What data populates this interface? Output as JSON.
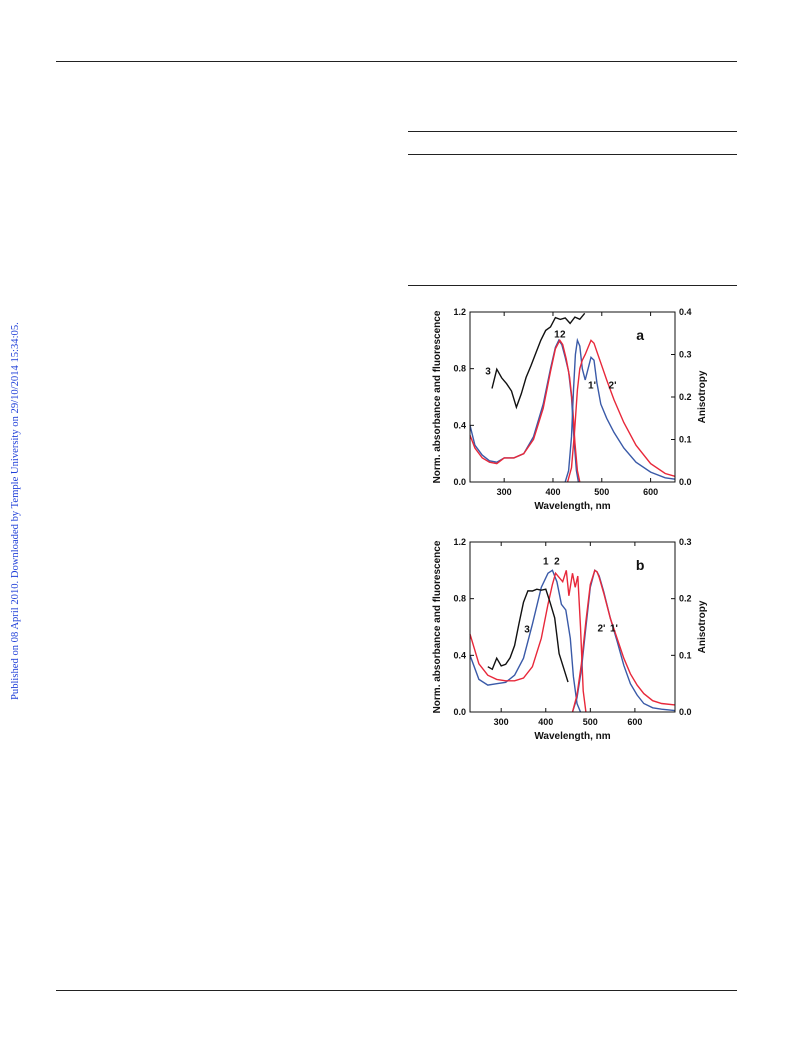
{
  "sidebar": {
    "notice": "Published on 08 April 2010. Downloaded by Temple University on 29/10/2014 15:34:05."
  },
  "colors": {
    "series_blue": "#3a5aa8",
    "series_red": "#e8283a",
    "series_black": "#111111"
  },
  "chart_data": [
    {
      "panel_label": "a",
      "type": "line",
      "xlabel": "Wavelength, nm",
      "ylabel": "Norm. absorbance and fluorescence",
      "y2label": "Anisotropy",
      "xlim": [
        230,
        650
      ],
      "ylim": [
        0,
        1.2
      ],
      "y2lim": [
        0,
        0.4
      ],
      "xticks": [
        300,
        400,
        500,
        600
      ],
      "yticks": [
        0.0,
        0.4,
        0.8,
        1.2
      ],
      "y2ticks": [
        0.0,
        0.1,
        0.2,
        0.3,
        0.4
      ],
      "tick_labels": {
        "x": [
          "300",
          "400",
          "500",
          "600"
        ],
        "y": [
          "0.0",
          "0.4",
          "0.8",
          "1.2"
        ],
        "y2": [
          "0.0",
          "0.1",
          "0.2",
          "0.3",
          "0.4"
        ]
      },
      "annotations": [
        {
          "text": "1",
          "x": 408,
          "y": 1.02
        },
        {
          "text": "2",
          "x": 420,
          "y": 1.02
        },
        {
          "text": "3",
          "x": 267,
          "y": 0.76
        },
        {
          "text": "1'",
          "x": 480,
          "y": 0.66
        },
        {
          "text": "2'",
          "x": 522,
          "y": 0.66
        }
      ],
      "series": [
        {
          "color": "blue",
          "axis": "left",
          "x": [
            230,
            240,
            255,
            270,
            285,
            300,
            320,
            340,
            360,
            380,
            395,
            405,
            412,
            418,
            425,
            432,
            438,
            443,
            448,
            452
          ],
          "y": [
            0.4,
            0.26,
            0.19,
            0.15,
            0.14,
            0.17,
            0.17,
            0.2,
            0.32,
            0.55,
            0.8,
            0.95,
            1.0,
            0.97,
            0.88,
            0.78,
            0.6,
            0.3,
            0.08,
            0.0
          ]
        },
        {
          "color": "red",
          "axis": "left",
          "x": [
            230,
            240,
            255,
            270,
            285,
            300,
            320,
            340,
            360,
            380,
            395,
            405,
            414,
            420,
            427,
            434,
            440,
            445,
            450,
            455
          ],
          "y": [
            0.33,
            0.24,
            0.17,
            0.14,
            0.13,
            0.17,
            0.17,
            0.2,
            0.3,
            0.52,
            0.78,
            0.94,
            1.0,
            0.97,
            0.87,
            0.74,
            0.55,
            0.28,
            0.08,
            0.0
          ]
        },
        {
          "color": "blue",
          "axis": "left",
          "x": [
            425,
            432,
            438,
            442,
            446,
            450,
            455,
            460,
            466,
            472,
            478,
            484,
            490,
            498,
            510,
            525,
            545,
            570,
            600,
            630,
            650
          ],
          "y": [
            0.0,
            0.08,
            0.32,
            0.65,
            0.9,
            1.0,
            0.96,
            0.8,
            0.72,
            0.8,
            0.88,
            0.86,
            0.7,
            0.55,
            0.45,
            0.35,
            0.24,
            0.14,
            0.07,
            0.03,
            0.02
          ]
        },
        {
          "color": "red",
          "axis": "left",
          "x": [
            430,
            438,
            444,
            450,
            455,
            460,
            466,
            472,
            478,
            484,
            490,
            500,
            510,
            525,
            545,
            570,
            600,
            630,
            650
          ],
          "y": [
            0.0,
            0.1,
            0.35,
            0.65,
            0.8,
            0.86,
            0.9,
            0.95,
            1.0,
            0.98,
            0.92,
            0.82,
            0.72,
            0.58,
            0.42,
            0.26,
            0.13,
            0.06,
            0.04
          ]
        },
        {
          "color": "black",
          "axis": "right",
          "x": [
            275,
            285,
            295,
            305,
            315,
            325,
            335,
            345,
            355,
            365,
            375,
            385,
            395,
            405,
            415,
            425,
            435,
            445,
            455,
            465
          ],
          "y": [
            0.22,
            0.26,
            0.24,
            0.23,
            0.22,
            0.18,
            0.21,
            0.24,
            0.27,
            0.3,
            0.34,
            0.36,
            0.37,
            0.38,
            0.38,
            0.38,
            0.38,
            0.39,
            0.39,
            0.39
          ]
        }
      ]
    },
    {
      "panel_label": "b",
      "type": "line",
      "xlabel": "Wavelength, nm",
      "ylabel": "Norm. absorbance and fluorescence",
      "y2label": "Anisotropy",
      "xlim": [
        230,
        690
      ],
      "ylim": [
        0,
        1.2
      ],
      "y2lim": [
        0,
        0.3
      ],
      "xticks": [
        300,
        400,
        500,
        600
      ],
      "yticks": [
        0.0,
        0.4,
        0.8,
        1.2
      ],
      "y2ticks": [
        0.0,
        0.1,
        0.2,
        0.3
      ],
      "tick_labels": {
        "x": [
          "300",
          "400",
          "500",
          "600"
        ],
        "y": [
          "0.0",
          "0.4",
          "0.8",
          "1.2"
        ],
        "y2": [
          "0.0",
          "0.1",
          "0.2",
          "0.3"
        ]
      },
      "annotations": [
        {
          "text": "1",
          "x": 400,
          "y": 1.04
        },
        {
          "text": "2",
          "x": 425,
          "y": 1.04
        },
        {
          "text": "3",
          "x": 358,
          "y": 0.56
        },
        {
          "text": "2'",
          "x": 525,
          "y": 0.57
        },
        {
          "text": "1'",
          "x": 553,
          "y": 0.57
        }
      ],
      "series": [
        {
          "color": "blue",
          "axis": "left",
          "x": [
            230,
            250,
            270,
            290,
            310,
            330,
            350,
            370,
            390,
            405,
            415,
            425,
            435,
            445,
            455,
            462,
            470,
            478
          ],
          "y": [
            0.4,
            0.23,
            0.19,
            0.2,
            0.21,
            0.26,
            0.38,
            0.62,
            0.88,
            0.98,
            1.0,
            0.92,
            0.76,
            0.72,
            0.52,
            0.25,
            0.06,
            0.0
          ]
        },
        {
          "color": "red",
          "axis": "left",
          "x": [
            230,
            250,
            270,
            290,
            310,
            330,
            350,
            370,
            390,
            405,
            415,
            422,
            430,
            438,
            446,
            452,
            460,
            466,
            472,
            478,
            484,
            490
          ],
          "y": [
            0.55,
            0.34,
            0.26,
            0.23,
            0.22,
            0.22,
            0.24,
            0.32,
            0.52,
            0.76,
            0.9,
            0.98,
            0.95,
            0.92,
            1.0,
            0.82,
            0.98,
            0.88,
            0.96,
            0.6,
            0.15,
            0.0
          ]
        },
        {
          "color": "blue",
          "axis": "left",
          "x": [
            460,
            470,
            480,
            490,
            500,
            510,
            515,
            520,
            530,
            545,
            560,
            575,
            590,
            605,
            620,
            640,
            660,
            690
          ],
          "y": [
            0.0,
            0.1,
            0.3,
            0.6,
            0.88,
            1.0,
            0.99,
            0.96,
            0.85,
            0.66,
            0.5,
            0.33,
            0.2,
            0.12,
            0.06,
            0.03,
            0.02,
            0.01
          ]
        },
        {
          "color": "red",
          "axis": "left",
          "x": [
            460,
            470,
            480,
            490,
            500,
            510,
            515,
            520,
            530,
            545,
            560,
            575,
            590,
            605,
            620,
            640,
            660,
            690
          ],
          "y": [
            0.0,
            0.12,
            0.34,
            0.64,
            0.9,
            1.0,
            0.99,
            0.95,
            0.84,
            0.66,
            0.52,
            0.38,
            0.27,
            0.19,
            0.13,
            0.08,
            0.06,
            0.05
          ]
        },
        {
          "color": "black",
          "axis": "right",
          "x": [
            270,
            280,
            290,
            300,
            310,
            320,
            330,
            340,
            350,
            360,
            370,
            380,
            390,
            400,
            410,
            420,
            430,
            440,
            450
          ],
          "y": [
            0.08,
            0.07,
            0.09,
            0.08,
            0.09,
            0.1,
            0.12,
            0.15,
            0.19,
            0.21,
            0.22,
            0.22,
            0.22,
            0.21,
            0.19,
            0.16,
            0.11,
            0.08,
            0.06
          ]
        }
      ]
    }
  ]
}
